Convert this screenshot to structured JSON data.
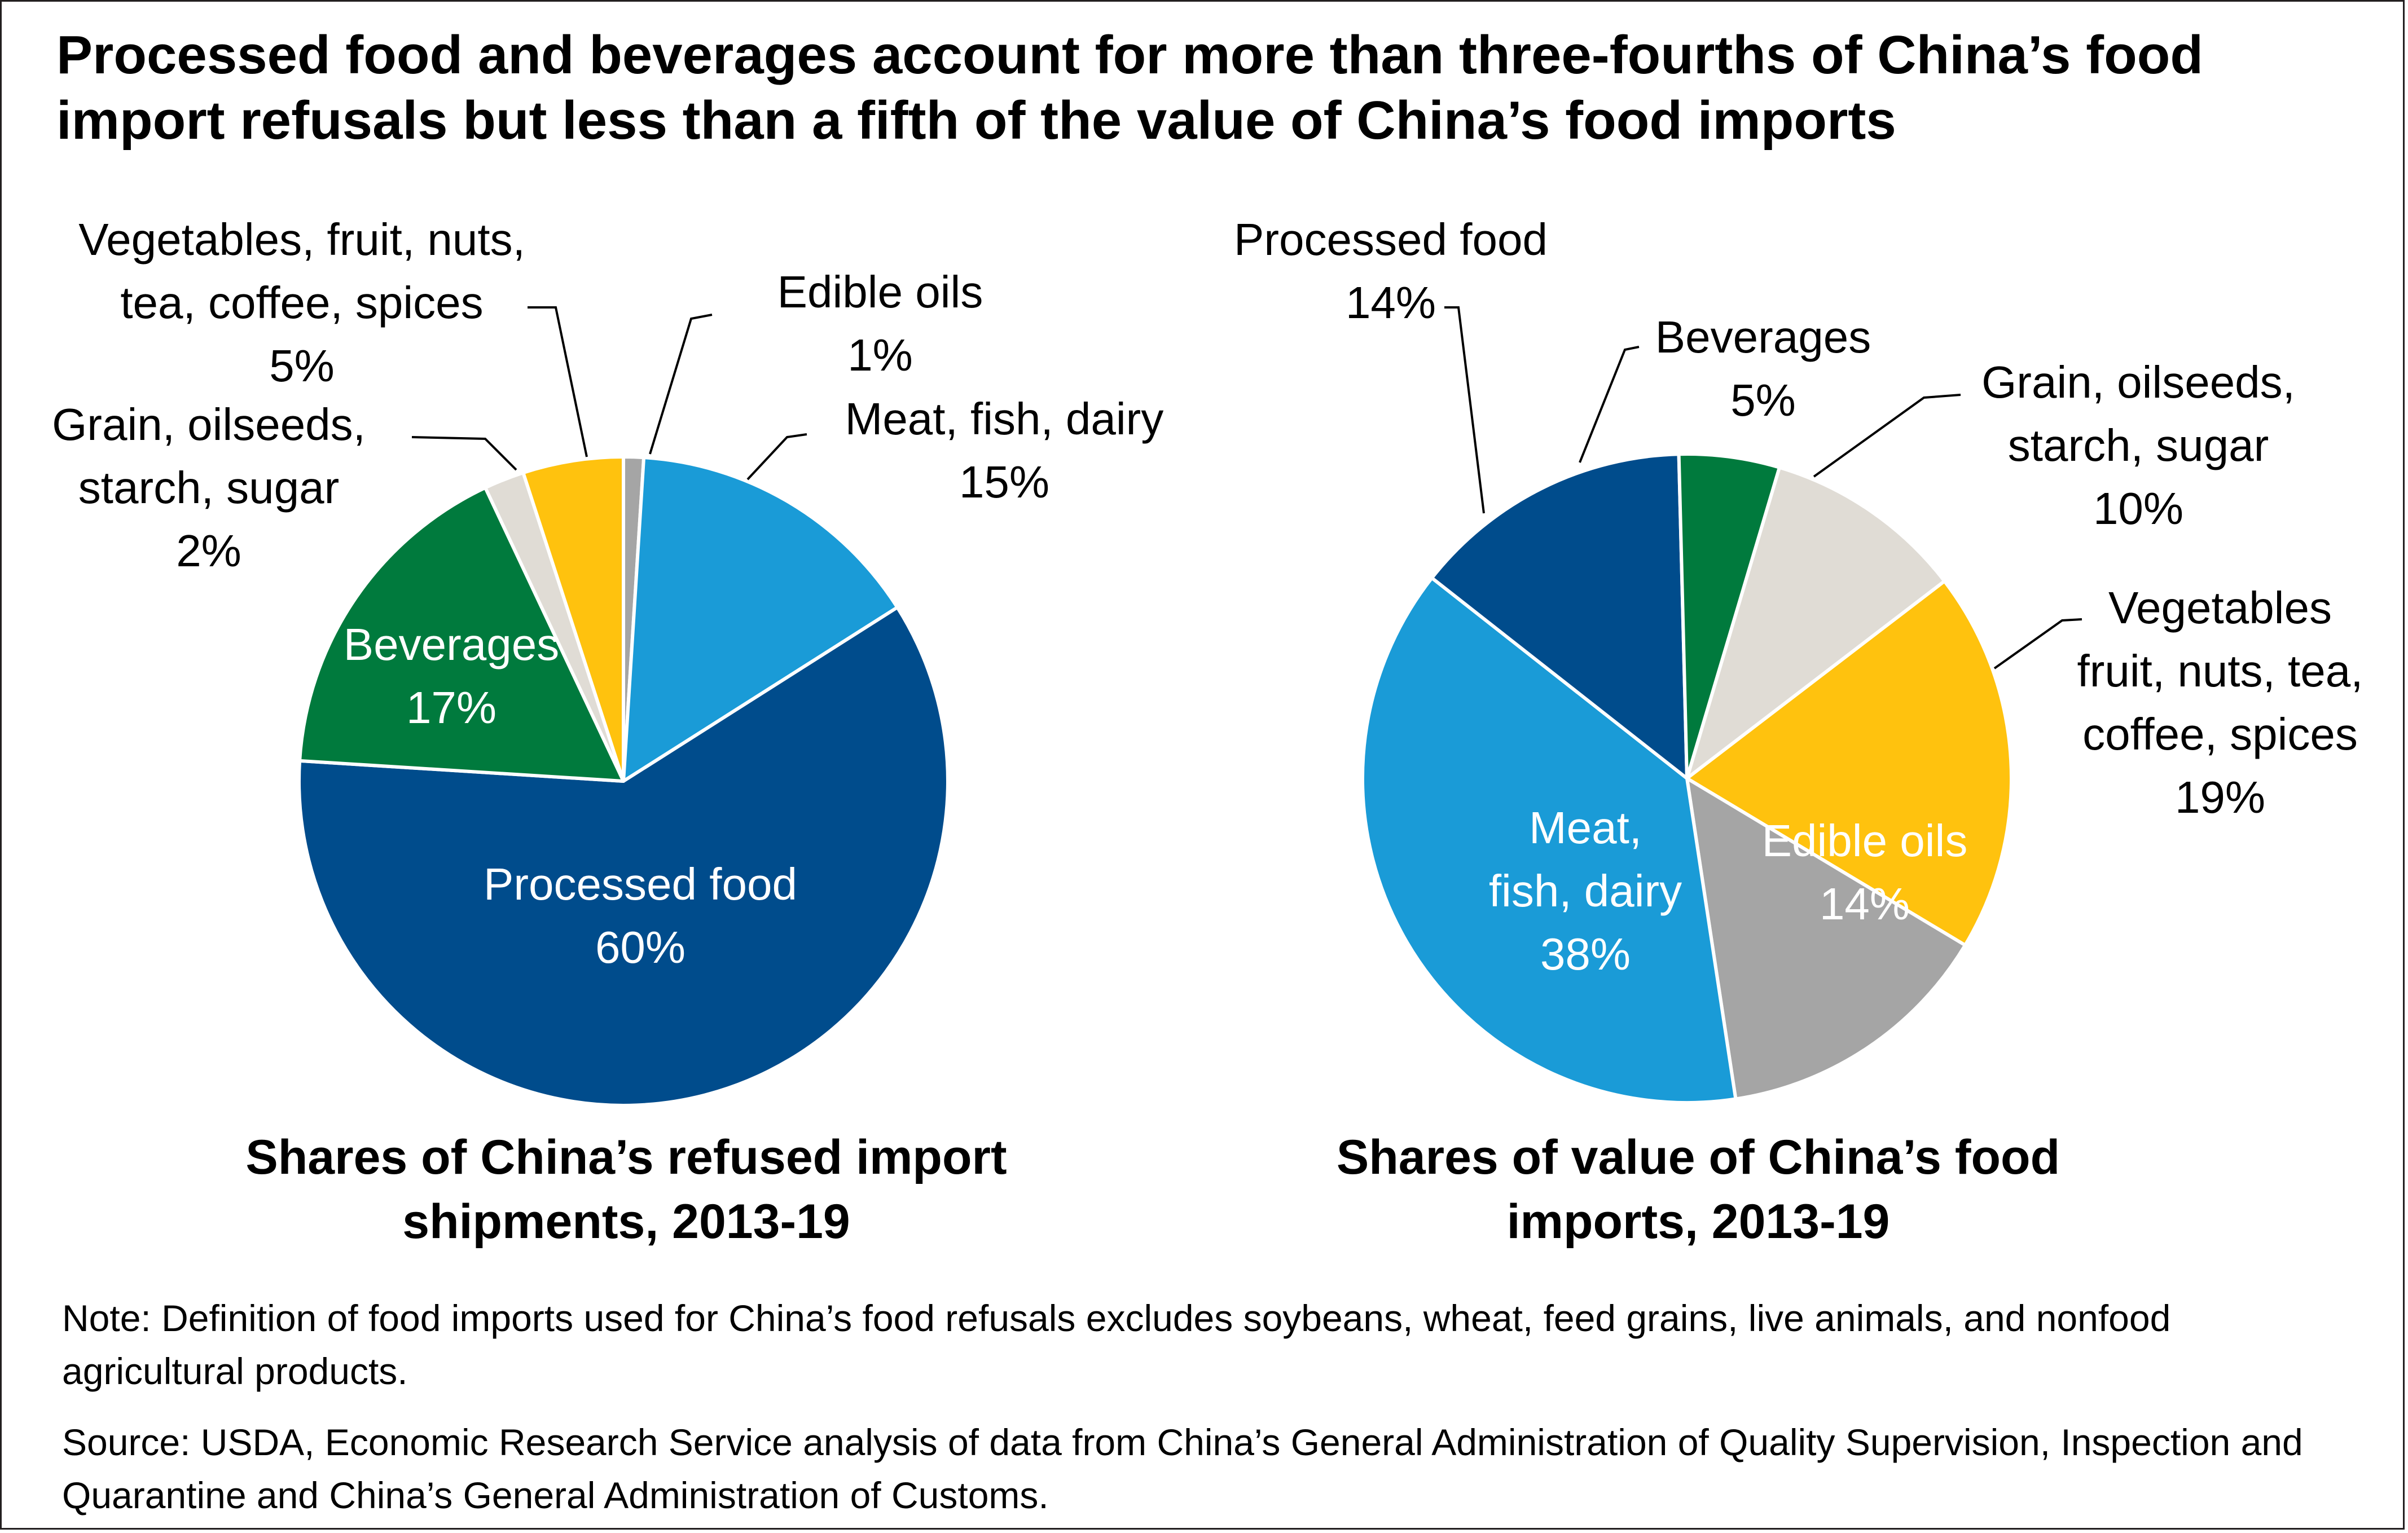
{
  "title": "Processed food and beverages account for more than three-fourths of China’s food import refusals but less than a fifth of the value of China’s food imports",
  "note": "Note: Definition of food imports used for China’s food refusals excludes soybeans, wheat, feed grains, live animals, and nonfood agricultural products.",
  "source": "Source: USDA, Economic Research Service analysis of data from China’s General Administration of Quality Supervision, Inspection and Quarantine and China’s General Administration of Customs.",
  "colors": {
    "processed_food": "#004c8c",
    "meat_fish_dairy": "#1a9bd7",
    "edible_oils": "#a5a5a5",
    "vegetables": "#ffc20e",
    "grain": "#e0dcd5",
    "beverages": "#007a3d",
    "leader": "#000000"
  },
  "chart_data": [
    {
      "type": "pie",
      "title": "Shares of China’s refused import shipments, 2013-19",
      "slices": [
        {
          "name": "Edible oils",
          "value": 1,
          "label_lines": [
            "Edible oils",
            "1%"
          ],
          "color_key": "edible_oils"
        },
        {
          "name": "Meat, fish, dairy",
          "value": 15,
          "label_lines": [
            "Meat, fish, dairy",
            "15%"
          ],
          "color_key": "meat_fish_dairy"
        },
        {
          "name": "Processed food",
          "value": 60,
          "label_lines": [
            "Processed food",
            "60%"
          ],
          "color_key": "processed_food"
        },
        {
          "name": "Beverages",
          "value": 17,
          "label_lines": [
            "Beverages",
            "17%"
          ],
          "color_key": "beverages"
        },
        {
          "name": "Grain, oilseeds, starch, sugar",
          "value": 2,
          "label_lines": [
            "Grain, oilseeds,",
            "starch, sugar",
            "2%"
          ],
          "color_key": "grain"
        },
        {
          "name": "Vegetables, fruit, nuts, tea, coffee, spices",
          "value": 5,
          "label_lines": [
            "Vegetables, fruit, nuts,",
            "tea, coffee, spices",
            "5%"
          ],
          "color_key": "vegetables"
        }
      ]
    },
    {
      "type": "pie",
      "title": "Shares of value of China’s food imports, 2013-19",
      "slices": [
        {
          "name": "Grain, oilseeds, starch, sugar",
          "value": 10,
          "label_lines": [
            "Grain, oilseeds,",
            "starch, sugar",
            "10%"
          ],
          "color_key": "grain"
        },
        {
          "name": "Vegetables fruit, nuts, tea, coffee, spices",
          "value": 19,
          "label_lines": [
            "Vegetables",
            "fruit, nuts, tea,",
            "coffee, spices",
            "19%"
          ],
          "color_key": "vegetables"
        },
        {
          "name": "Edible oils",
          "value": 14,
          "label_lines": [
            "Edible oils",
            "14%"
          ],
          "color_key": "edible_oils"
        },
        {
          "name": "Meat, fish, dairy",
          "value": 38,
          "label_lines": [
            "Meat,",
            "fish, dairy",
            "38%"
          ],
          "color_key": "meat_fish_dairy"
        },
        {
          "name": "Processed food",
          "value": 14,
          "label_lines": [
            "Processed food",
            "14%"
          ],
          "color_key": "processed_food"
        },
        {
          "name": "Beverages",
          "value": 5,
          "label_lines": [
            "Beverages",
            "5%"
          ],
          "color_key": "beverages"
        }
      ]
    }
  ]
}
